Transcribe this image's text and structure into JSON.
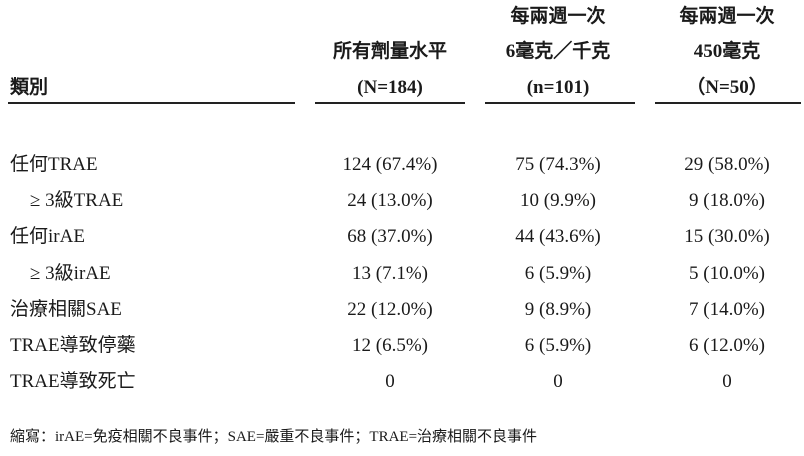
{
  "table": {
    "header": [
      [
        "類別"
      ],
      [
        "所有劑量水平",
        "(N=184)"
      ],
      [
        "每兩週一次",
        "6毫克／千克",
        "(n=101)"
      ],
      [
        "每兩週一次",
        "450毫克",
        "（N=50）"
      ]
    ],
    "rows": [
      [
        "任何TRAE",
        "124 (67.4%)",
        "75 (74.3%)",
        "29 (58.0%)"
      ],
      [
        "≥ 3級TRAE",
        "24 (13.0%)",
        "10 (9.9%)",
        "9 (18.0%)"
      ],
      [
        "任何irAE",
        "68 (37.0%)",
        "44 (43.6%)",
        "15 (30.0%)"
      ],
      [
        "≥ 3級irAE",
        "13 (7.1%)",
        "6 (5.9%)",
        "5 (10.0%)"
      ],
      [
        "治療相關SAE",
        "22 (12.0%)",
        "9 (8.9%)",
        "7 (14.0%)"
      ],
      [
        "TRAE導致停藥",
        "12 (6.5%)",
        "6 (5.9%)",
        "6 (12.0%)"
      ],
      [
        "TRAE導致死亡",
        "0",
        "0",
        "0"
      ]
    ]
  },
  "footnote": "縮寫：irAE=免疫相關不良事件；SAE=嚴重不良事件；TRAE=治療相關不良事件"
}
